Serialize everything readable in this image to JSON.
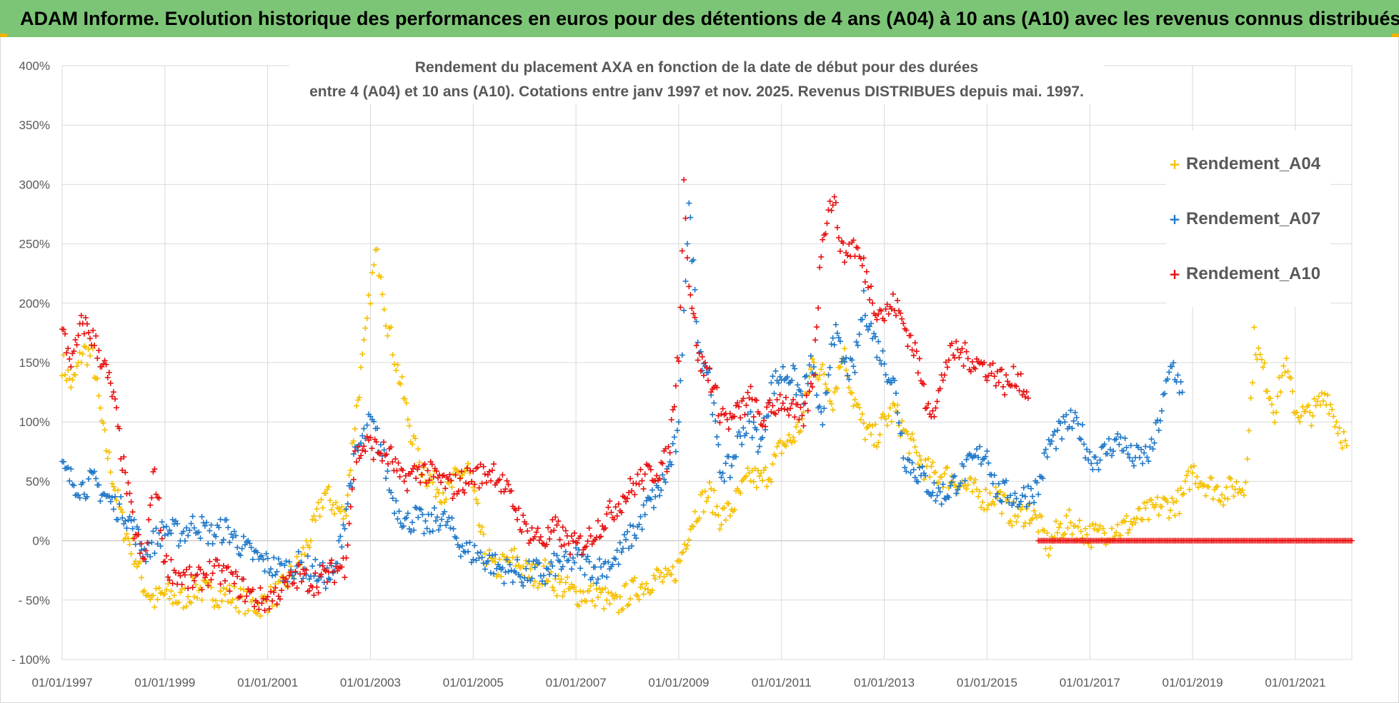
{
  "banner": {
    "title": "ADAM Informe. Evolution historique des performances en euros pour des détentions de 4 ans (A04) à 10 ans (A10) avec les revenus connus distribués"
  },
  "colors": {
    "banner_bg": "#7cc576",
    "a04": "#f5c000",
    "a07": "#1f78c8",
    "a10": "#e81010",
    "grid": "#d9d9d9",
    "axis_text": "#595959"
  },
  "chart_data": {
    "type": "scatter",
    "title_line1": "Rendement du placement AXA en fonction de la date de début pour des durées",
    "title_line2": "entre 4 (A04) et 10 ans (A10). Cotations entre janv 1997 et nov. 2025. Revenus DISTRIBUES depuis mai. 1997.",
    "xlabel": "",
    "ylabel": "",
    "x_range": [
      1997.0,
      2022.1
    ],
    "ylim": [
      -100,
      400
    ],
    "y_ticks": [
      400,
      350,
      300,
      250,
      200,
      150,
      100,
      50,
      0,
      -50,
      -100
    ],
    "y_tick_labels": [
      "400%",
      "350%",
      "300%",
      "250%",
      "200%",
      "150%",
      "100%",
      "50%",
      "0%",
      "- 50%",
      "- 100%"
    ],
    "x_ticks": [
      1997,
      1999,
      2001,
      2003,
      2005,
      2007,
      2009,
      2011,
      2013,
      2015,
      2017,
      2019,
      2021
    ],
    "x_tick_labels": [
      "01/01/1997",
      "01/01/1999",
      "01/01/2001",
      "01/01/2003",
      "01/01/2005",
      "01/01/2007",
      "01/01/2009",
      "01/01/2011",
      "01/01/2013",
      "01/01/2015",
      "01/01/2017",
      "01/01/2019",
      "01/01/2021"
    ],
    "grid": true,
    "legend_position": "top-right",
    "marker": "+",
    "series": [
      {
        "name": "Rendement_A04",
        "color": "#f5c000",
        "x": [
          1997.0,
          1997.2,
          1997.4,
          1997.6,
          1997.8,
          1998.0,
          1998.2,
          1998.4,
          1998.6,
          1998.8,
          1999.0,
          1999.3,
          1999.6,
          1999.9,
          2000.2,
          2000.5,
          2000.8,
          2001.0,
          2001.3,
          2001.6,
          2001.9,
          2002.1,
          2002.3,
          2002.5,
          2002.7,
          2002.9,
          2003.0,
          2003.1,
          2003.2,
          2003.3,
          2003.4,
          2003.5,
          2003.7,
          2003.9,
          2004.1,
          2004.3,
          2004.5,
          2004.7,
          2004.9,
          2005.0,
          2005.2,
          2005.4,
          2005.6,
          2005.8,
          2006.0,
          2006.2,
          2006.4,
          2006.6,
          2006.8,
          2007.0,
          2007.2,
          2007.4,
          2007.6,
          2007.8,
          2008.0,
          2008.2,
          2008.4,
          2008.6,
          2008.8,
          2009.0,
          2009.2,
          2009.4,
          2009.6,
          2009.8,
          2010.0,
          2010.2,
          2010.4,
          2010.6,
          2010.8,
          2011.0,
          2011.2,
          2011.4,
          2011.6,
          2011.8,
          2012.0,
          2012.2,
          2012.4,
          2012.6,
          2012.8,
          2013.0,
          2013.2,
          2013.4,
          2013.6,
          2013.8,
          2014.0,
          2014.2,
          2014.4,
          2014.6,
          2014.8,
          2015.0,
          2015.2,
          2015.4,
          2015.6,
          2015.8,
          2016.0,
          2016.2,
          2016.4,
          2016.6,
          2016.8,
          2017.0,
          2017.2,
          2017.4,
          2017.6,
          2017.8,
          2018.0,
          2018.2,
          2018.4,
          2018.6,
          2018.8,
          2019.0,
          2019.2,
          2019.4,
          2019.6,
          2019.8,
          2020.0,
          2020.1,
          2020.2,
          2020.4,
          2020.6,
          2020.8,
          2021.0,
          2021.2,
          2021.4,
          2021.6,
          2021.8,
          2022.0
        ],
        "y": [
          150,
          130,
          160,
          155,
          90,
          50,
          10,
          -10,
          -40,
          -50,
          -45,
          -50,
          -40,
          -45,
          -45,
          -50,
          -55,
          -50,
          -40,
          -20,
          10,
          40,
          30,
          20,
          100,
          170,
          210,
          240,
          230,
          190,
          170,
          150,
          110,
          70,
          55,
          45,
          40,
          55,
          60,
          40,
          -5,
          -25,
          -20,
          -15,
          -25,
          -30,
          -25,
          -35,
          -40,
          -45,
          -45,
          -45,
          -50,
          -55,
          -45,
          -40,
          -35,
          -30,
          -35,
          -20,
          10,
          30,
          40,
          20,
          25,
          40,
          55,
          50,
          60,
          80,
          85,
          100,
          150,
          140,
          120,
          160,
          120,
          95,
          85,
          100,
          110,
          90,
          75,
          60,
          55,
          55,
          50,
          45,
          40,
          35,
          40,
          25,
          20,
          25,
          15,
          -5,
          10,
          15,
          10,
          5,
          5,
          10,
          10,
          15,
          20,
          25,
          30,
          30,
          35,
          60,
          50,
          45,
          40,
          45,
          45,
          90,
          170,
          140,
          110,
          150,
          110,
          105,
          110,
          125,
          100,
          80
        ]
      },
      {
        "name": "Rendement_A07",
        "color": "#1f78c8",
        "x": [
          1997.0,
          1997.2,
          1997.4,
          1997.6,
          1997.8,
          1998.0,
          1998.2,
          1998.4,
          1998.6,
          1998.8,
          1999.0,
          1999.3,
          1999.6,
          1999.9,
          2000.2,
          2000.5,
          2000.8,
          2001.0,
          2001.3,
          2001.6,
          2001.9,
          2002.1,
          2002.3,
          2002.5,
          2002.7,
          2002.9,
          2003.0,
          2003.1,
          2003.2,
          2003.3,
          2003.4,
          2003.5,
          2003.7,
          2003.9,
          2004.1,
          2004.3,
          2004.5,
          2004.7,
          2004.9,
          2005.0,
          2005.2,
          2005.4,
          2005.6,
          2005.8,
          2006.0,
          2006.2,
          2006.4,
          2006.6,
          2006.8,
          2007.0,
          2007.2,
          2007.4,
          2007.6,
          2007.8,
          2008.0,
          2008.2,
          2008.4,
          2008.6,
          2008.8,
          2009.0,
          2009.1,
          2009.2,
          2009.4,
          2009.6,
          2009.8,
          2010.0,
          2010.2,
          2010.4,
          2010.6,
          2010.8,
          2011.0,
          2011.2,
          2011.4,
          2011.6,
          2011.8,
          2012.0,
          2012.2,
          2012.4,
          2012.6,
          2012.8,
          2013.0,
          2013.2,
          2013.4,
          2013.6,
          2013.8,
          2014.0,
          2014.2,
          2014.4,
          2014.6,
          2014.8,
          2015.0,
          2015.2,
          2015.4,
          2015.6,
          2015.8,
          2016.0,
          2016.2,
          2016.4,
          2016.6,
          2016.8,
          2017.0,
          2017.2,
          2017.4,
          2017.6,
          2017.8,
          2018.0,
          2018.2,
          2018.4,
          2018.6,
          2018.8
        ],
        "y": [
          60,
          50,
          45,
          50,
          40,
          30,
          25,
          10,
          -10,
          0,
          10,
          5,
          15,
          5,
          10,
          -5,
          -15,
          -20,
          -25,
          -20,
          -25,
          -30,
          -30,
          20,
          70,
          90,
          100,
          90,
          80,
          60,
          40,
          30,
          15,
          20,
          10,
          20,
          15,
          0,
          -10,
          -10,
          -15,
          -20,
          -25,
          -25,
          -30,
          -25,
          -30,
          -20,
          -20,
          -15,
          -20,
          -25,
          -20,
          -15,
          0,
          10,
          30,
          40,
          60,
          90,
          200,
          280,
          160,
          140,
          60,
          60,
          90,
          100,
          80,
          130,
          140,
          140,
          120,
          150,
          90,
          180,
          150,
          140,
          200,
          170,
          150,
          130,
          70,
          60,
          50,
          40,
          40,
          50,
          60,
          70,
          75,
          40,
          40,
          35,
          40,
          45,
          80,
          90,
          100,
          95,
          70,
          70,
          80,
          85,
          70,
          70,
          75,
          110,
          150,
          125
        ]
      },
      {
        "name": "Rendement_A10",
        "color": "#e81010",
        "x": [
          1997.0,
          1997.2,
          1997.4,
          1997.6,
          1997.8,
          1998.0,
          1998.2,
          1998.4,
          1998.6,
          1998.8,
          1999.0,
          1999.3,
          1999.6,
          1999.9,
          2000.2,
          2000.5,
          2000.8,
          2001.0,
          2001.3,
          2001.6,
          2001.9,
          2002.1,
          2002.3,
          2002.5,
          2002.7,
          2002.9,
          2003.0,
          2003.2,
          2003.4,
          2003.6,
          2003.8,
          2004.0,
          2004.2,
          2004.4,
          2004.6,
          2004.8,
          2005.0,
          2005.2,
          2005.4,
          2005.6,
          2005.8,
          2006.0,
          2006.2,
          2006.4,
          2006.6,
          2006.8,
          2007.0,
          2007.2,
          2007.4,
          2007.6,
          2007.8,
          2008.0,
          2008.2,
          2008.4,
          2008.6,
          2008.8,
          2009.0,
          2009.1,
          2009.2,
          2009.4,
          2009.6,
          2009.8,
          2010.0,
          2010.2,
          2010.4,
          2010.6,
          2010.8,
          2011.0,
          2011.2,
          2011.4,
          2011.6,
          2011.8,
          2012.0,
          2012.2,
          2012.4,
          2012.6,
          2012.8,
          2013.0,
          2013.2,
          2013.4,
          2013.6,
          2013.8,
          2014.0,
          2014.2,
          2014.4,
          2014.6,
          2014.8,
          2015.0,
          2015.2,
          2015.4,
          2015.6,
          2015.8
        ],
        "y": [
          175,
          150,
          185,
          170,
          150,
          120,
          60,
          10,
          -20,
          60,
          -20,
          -30,
          -35,
          -25,
          -30,
          -40,
          -50,
          -50,
          -40,
          -30,
          -35,
          -30,
          -25,
          -20,
          70,
          80,
          80,
          75,
          70,
          50,
          55,
          60,
          55,
          50,
          45,
          50,
          55,
          55,
          60,
          45,
          30,
          10,
          5,
          0,
          10,
          0,
          -5,
          0,
          10,
          20,
          30,
          40,
          50,
          55,
          60,
          70,
          160,
          300,
          220,
          150,
          140,
          110,
          100,
          110,
          120,
          100,
          110,
          120,
          110,
          100,
          130,
          260,
          290,
          240,
          250,
          230,
          200,
          190,
          200,
          180,
          160,
          120,
          110,
          150,
          160,
          155,
          150,
          145,
          140,
          130,
          140,
          120
        ]
      },
      {
        "name": "Rendement_A10 (flat)",
        "color": "#e81010",
        "x": [
          2016.0,
          2022.1
        ],
        "y": [
          0,
          0
        ]
      }
    ]
  },
  "legend": {
    "items": [
      {
        "label": "Rendement_A04",
        "color": "#f5c000",
        "marker": "+"
      },
      {
        "label": "Rendement_A07",
        "color": "#1f78c8",
        "marker": "+"
      },
      {
        "label": "Rendement_A10",
        "color": "#e81010",
        "marker": "+"
      }
    ]
  }
}
